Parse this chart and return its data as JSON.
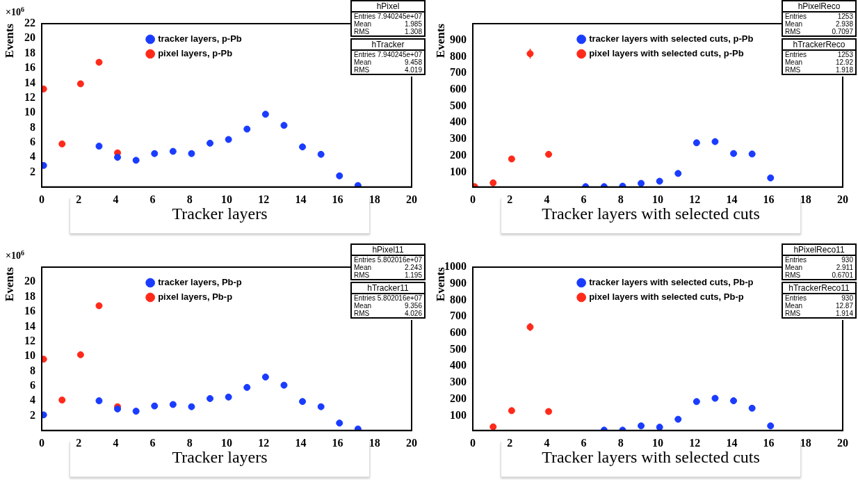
{
  "chart_data": [
    {
      "type": "scatter",
      "ylabel": "Events",
      "xlabel": "Tracker layers",
      "xlim": [
        0,
        20
      ],
      "xticks": [
        0,
        2,
        4,
        6,
        8,
        10,
        12,
        14,
        16,
        18,
        20
      ],
      "ylim": [
        0,
        22
      ],
      "yticks": [
        2,
        4,
        6,
        8,
        10,
        12,
        14,
        16,
        18,
        20,
        22
      ],
      "grid": false,
      "legend": "top",
      "marker": "circle",
      "series": [
        {
          "name": "pixel layers, p-Pb",
          "color": "#ff2a1a",
          "x": [
            0.1,
            1.1,
            2.1,
            3.1,
            4.1
          ],
          "values": [
            13.2,
            5.8,
            13.9,
            16.8,
            4.6
          ]
        },
        {
          "name": "tracker layers, p-Pb",
          "color": "#1a3cff",
          "x": [
            0.1,
            3.1,
            4.1,
            5.1,
            6.1,
            7.1,
            8.1,
            9.1,
            10.1,
            11.1,
            12.1,
            13.1,
            14.1,
            15.1,
            16.1,
            17.1
          ],
          "values": [
            2.9,
            5.5,
            4.0,
            3.6,
            4.5,
            4.8,
            4.5,
            5.9,
            6.4,
            7.8,
            9.8,
            8.3,
            5.4,
            4.4,
            1.5,
            0.2
          ]
        }
      ],
      "annotations": [
        "×10$^{6}$",
        "hPixel",
        "Entries 7.940245e+07",
        "Mean 1.985",
        "RMS 1.308",
        "hTracker",
        "Entries 7.940245e+07",
        "Mean 9.458",
        "RMS 4.019"
      ]
    },
    {
      "type": "scatter",
      "ylabel": "Events",
      "xlabel": "Tracker layers with selected cuts",
      "xlim": [
        0,
        20
      ],
      "xticks": [
        0,
        2,
        4,
        6,
        8,
        10,
        12,
        14,
        16,
        18,
        20
      ],
      "ylim": [
        10,
        1000
      ],
      "yticks": [
        100,
        200,
        300,
        400,
        500,
        600,
        700,
        800,
        900
      ],
      "grid": false,
      "legend": "top",
      "marker": "circle",
      "series": [
        {
          "name": "pixel layers with selected cuts, p-Pb",
          "color": "#ff2a1a",
          "x": [
            0.1,
            1.1,
            2.1,
            3.1,
            4.1
          ],
          "values": [
            12,
            35,
            180,
            818,
            208
          ],
          "errors": [
            null,
            null,
            null,
            30,
            null
          ]
        },
        {
          "name": "tracker layers with selected cuts, p-Pb",
          "color": "#1a3cff",
          "x": [
            6.1,
            7.1,
            8.1,
            9.1,
            10.1,
            11.1,
            12.1,
            13.1,
            14.1,
            15.1,
            16.1
          ],
          "values": [
            12,
            12,
            15,
            32,
            45,
            92,
            278,
            285,
            213,
            210,
            65
          ],
          "errors": [
            null,
            null,
            null,
            null,
            null,
            null,
            16,
            16,
            null,
            null,
            null
          ]
        }
      ],
      "annotations": [
        "hPixelReco",
        "Entries 1253",
        "Mean 2.938",
        "RMS 0.7097",
        "hTrackerReco",
        "Entries 1253",
        "Mean 12.92",
        "RMS 1.918"
      ]
    },
    {
      "type": "scatter",
      "ylabel": "Events",
      "xlabel": "Tracker layers",
      "xlim": [
        0,
        20
      ],
      "xticks": [
        0,
        2,
        4,
        6,
        8,
        10,
        12,
        14,
        16,
        18,
        20
      ],
      "ylim": [
        0,
        22
      ],
      "yticks": [
        2,
        4,
        6,
        8,
        10,
        12,
        14,
        16,
        18,
        20
      ],
      "grid": false,
      "legend": "top",
      "marker": "circle",
      "series": [
        {
          "name": "pixel layers, Pb-p",
          "color": "#ff2a1a",
          "x": [
            0.1,
            1.1,
            2.1,
            3.1,
            4.1
          ],
          "values": [
            9.6,
            4.1,
            10.2,
            16.8,
            3.2
          ]
        },
        {
          "name": "tracker layers, Pb-p",
          "color": "#1a3cff",
          "x": [
            0.1,
            3.1,
            4.1,
            5.1,
            6.1,
            7.1,
            8.1,
            9.1,
            10.1,
            11.1,
            12.1,
            13.1,
            14.1,
            15.1,
            16.1,
            17.1
          ],
          "values": [
            2.1,
            4.0,
            2.9,
            2.6,
            3.3,
            3.5,
            3.2,
            4.3,
            4.5,
            5.8,
            7.2,
            6.1,
            3.9,
            3.2,
            1.0,
            0.2
          ]
        }
      ],
      "annotations": [
        "×10$^{6}$",
        "hPixel11",
        "Entries 5.802016e+07",
        "Mean 2.243",
        "RMS 1.195",
        "hTracker11",
        "Entries 5.802016e+07",
        "Mean 9.356",
        "RMS 4.026"
      ]
    },
    {
      "type": "scatter",
      "ylabel": "Events",
      "xlabel": "Tracker layers with selected cuts",
      "xlim": [
        0,
        20
      ],
      "xticks": [
        0,
        2,
        4,
        6,
        8,
        10,
        12,
        14,
        16,
        18,
        20
      ],
      "ylim": [
        10,
        1000
      ],
      "yticks": [
        100,
        200,
        300,
        400,
        500,
        600,
        700,
        800,
        900,
        1000
      ],
      "grid": false,
      "legend": "top",
      "marker": "circle",
      "series": [
        {
          "name": "pixel layers with selected cuts, Pb-p",
          "color": "#ff2a1a",
          "x": [
            1.1,
            2.1,
            3.1,
            4.1
          ],
          "values": [
            32,
            130,
            637,
            125
          ],
          "errors": [
            null,
            null,
            25,
            null
          ]
        },
        {
          "name": "tracker layers with selected cuts, Pb-p",
          "color": "#1a3cff",
          "x": [
            7.1,
            8.1,
            9.1,
            10.1,
            11.1,
            12.1,
            13.1,
            14.1,
            15.1,
            16.1
          ],
          "values": [
            12,
            12,
            38,
            30,
            78,
            185,
            205,
            190,
            145,
            38
          ]
        }
      ],
      "annotations": [
        "hPixelReco11",
        "Entries 930",
        "Mean 2.911",
        "RMS 0.6701",
        "hTrackerReco11",
        "Entries 930",
        "Mean 12.87",
        "RMS 1.914"
      ]
    }
  ]
}
